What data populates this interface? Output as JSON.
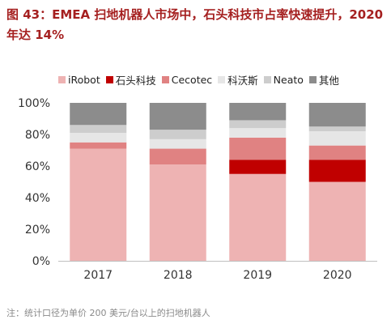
{
  "title": "图 43：EMEA 扫地机器人市场中，石头科技市占率快速提升，2020 年达 14%",
  "note": "注：统计口径为单价 200 美元/台以上的扫地机器人",
  "chart_data": {
    "type": "bar",
    "stacked": true,
    "categories": [
      "2017",
      "2018",
      "2019",
      "2020"
    ],
    "ylim": [
      0,
      100
    ],
    "yticks": [
      "0%",
      "20%",
      "40%",
      "60%",
      "80%",
      "100%"
    ],
    "ytick_values": [
      0,
      20,
      40,
      60,
      80,
      100
    ],
    "legend_position": "top",
    "grid": false,
    "series": [
      {
        "name": "iRobot",
        "color": "#eeb3b3",
        "values": [
          71,
          61,
          55,
          50
        ]
      },
      {
        "name": "石头科技",
        "color": "#c00000",
        "values": [
          0,
          0,
          9,
          14
        ]
      },
      {
        "name": "Cecotec",
        "color": "#e08282",
        "values": [
          4,
          10,
          14,
          9
        ]
      },
      {
        "name": "科沃斯",
        "color": "#e6e6e6",
        "values": [
          6,
          6,
          6,
          9
        ]
      },
      {
        "name": "Neato",
        "color": "#cdcdcd",
        "values": [
          5,
          6,
          5,
          3
        ]
      },
      {
        "name": "其他",
        "color": "#8c8c8c",
        "values": [
          14,
          17,
          11,
          15
        ]
      }
    ]
  }
}
